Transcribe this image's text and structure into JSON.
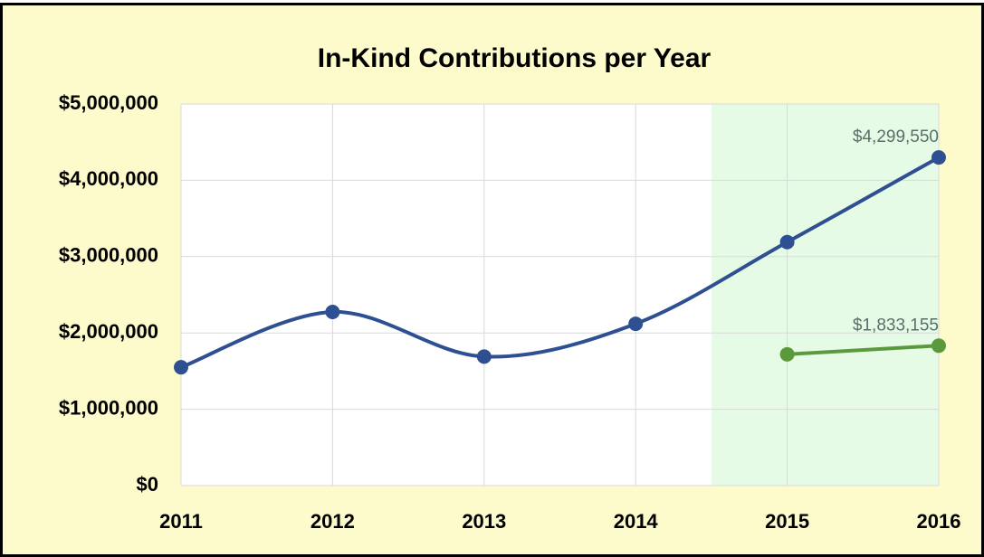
{
  "chart_data": {
    "type": "line",
    "title": "In-Kind Contributions per Year",
    "x": [
      2011,
      2012,
      2013,
      2014,
      2015,
      2016
    ],
    "xlim": [
      2011,
      2016
    ],
    "xticks": [
      2011,
      2012,
      2013,
      2014,
      2015,
      2016
    ],
    "ylim": [
      0,
      5000000
    ],
    "yticks": [
      {
        "value": 0,
        "label": "$0"
      },
      {
        "value": 1000000,
        "label": "$1,000,000"
      },
      {
        "value": 2000000,
        "label": "$2,000,000"
      },
      {
        "value": 3000000,
        "label": "$3,000,000"
      },
      {
        "value": 4000000,
        "label": "$4,000,000"
      },
      {
        "value": 5000000,
        "label": "$5,000,000"
      }
    ],
    "grid": true,
    "smooth": true,
    "highlight": {
      "x": [
        2014.5,
        2016
      ],
      "color": "#e6fbe6"
    },
    "series": [
      {
        "color": "#2f4f93",
        "values": [
          1550000,
          2275000,
          1690000,
          2120000,
          3190000,
          4299550
        ],
        "value_labels": [
          null,
          null,
          null,
          null,
          null,
          "$4,299,550"
        ],
        "smooth": true
      },
      {
        "color": "#5a9a3c",
        "values": [
          null,
          null,
          null,
          null,
          1720000,
          1833155
        ],
        "value_labels": [
          null,
          null,
          null,
          null,
          null,
          "$1,833,155"
        ],
        "smooth": false
      }
    ]
  }
}
